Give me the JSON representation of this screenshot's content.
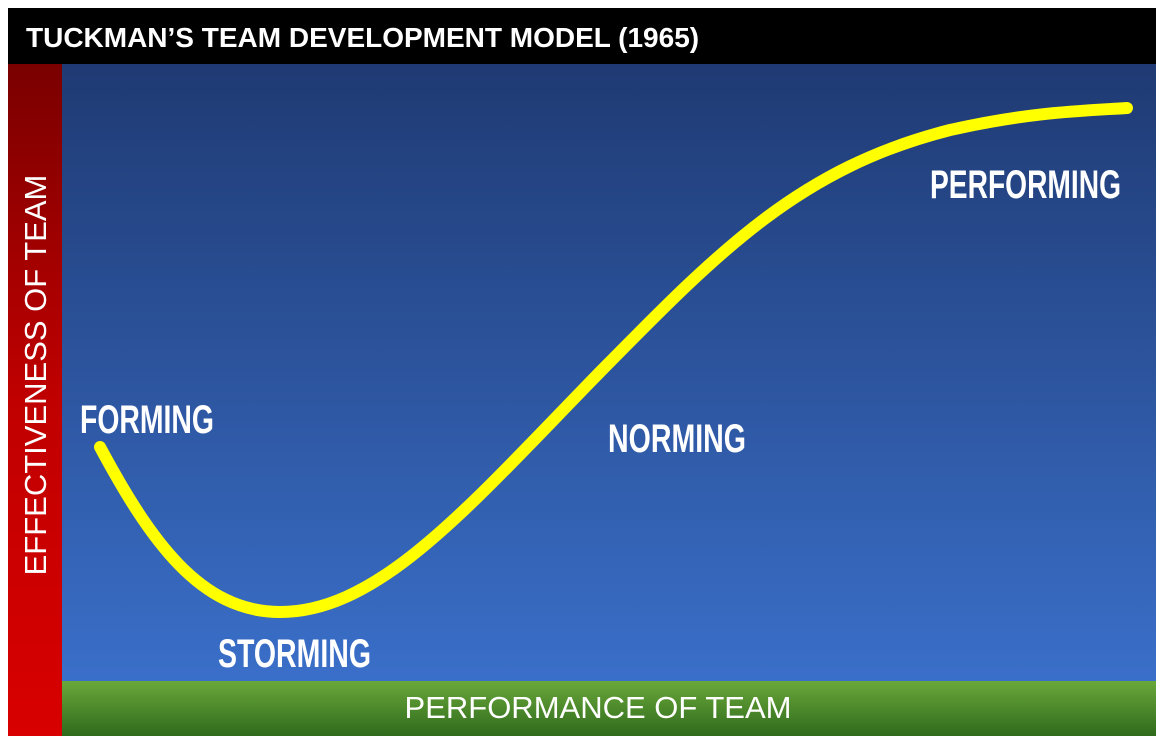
{
  "header": {
    "title": "TUCKMAN’S TEAM DEVELOPMENT MODEL (1965)"
  },
  "axes": {
    "y_label": "EFFECTIVENESS OF TEAM",
    "x_label": "PERFORMANCE OF TEAM"
  },
  "stages": [
    {
      "label": "FORMING"
    },
    {
      "label": "STORMING"
    },
    {
      "label": "NORMING"
    },
    {
      "label": "PERFORMING"
    }
  ]
}
